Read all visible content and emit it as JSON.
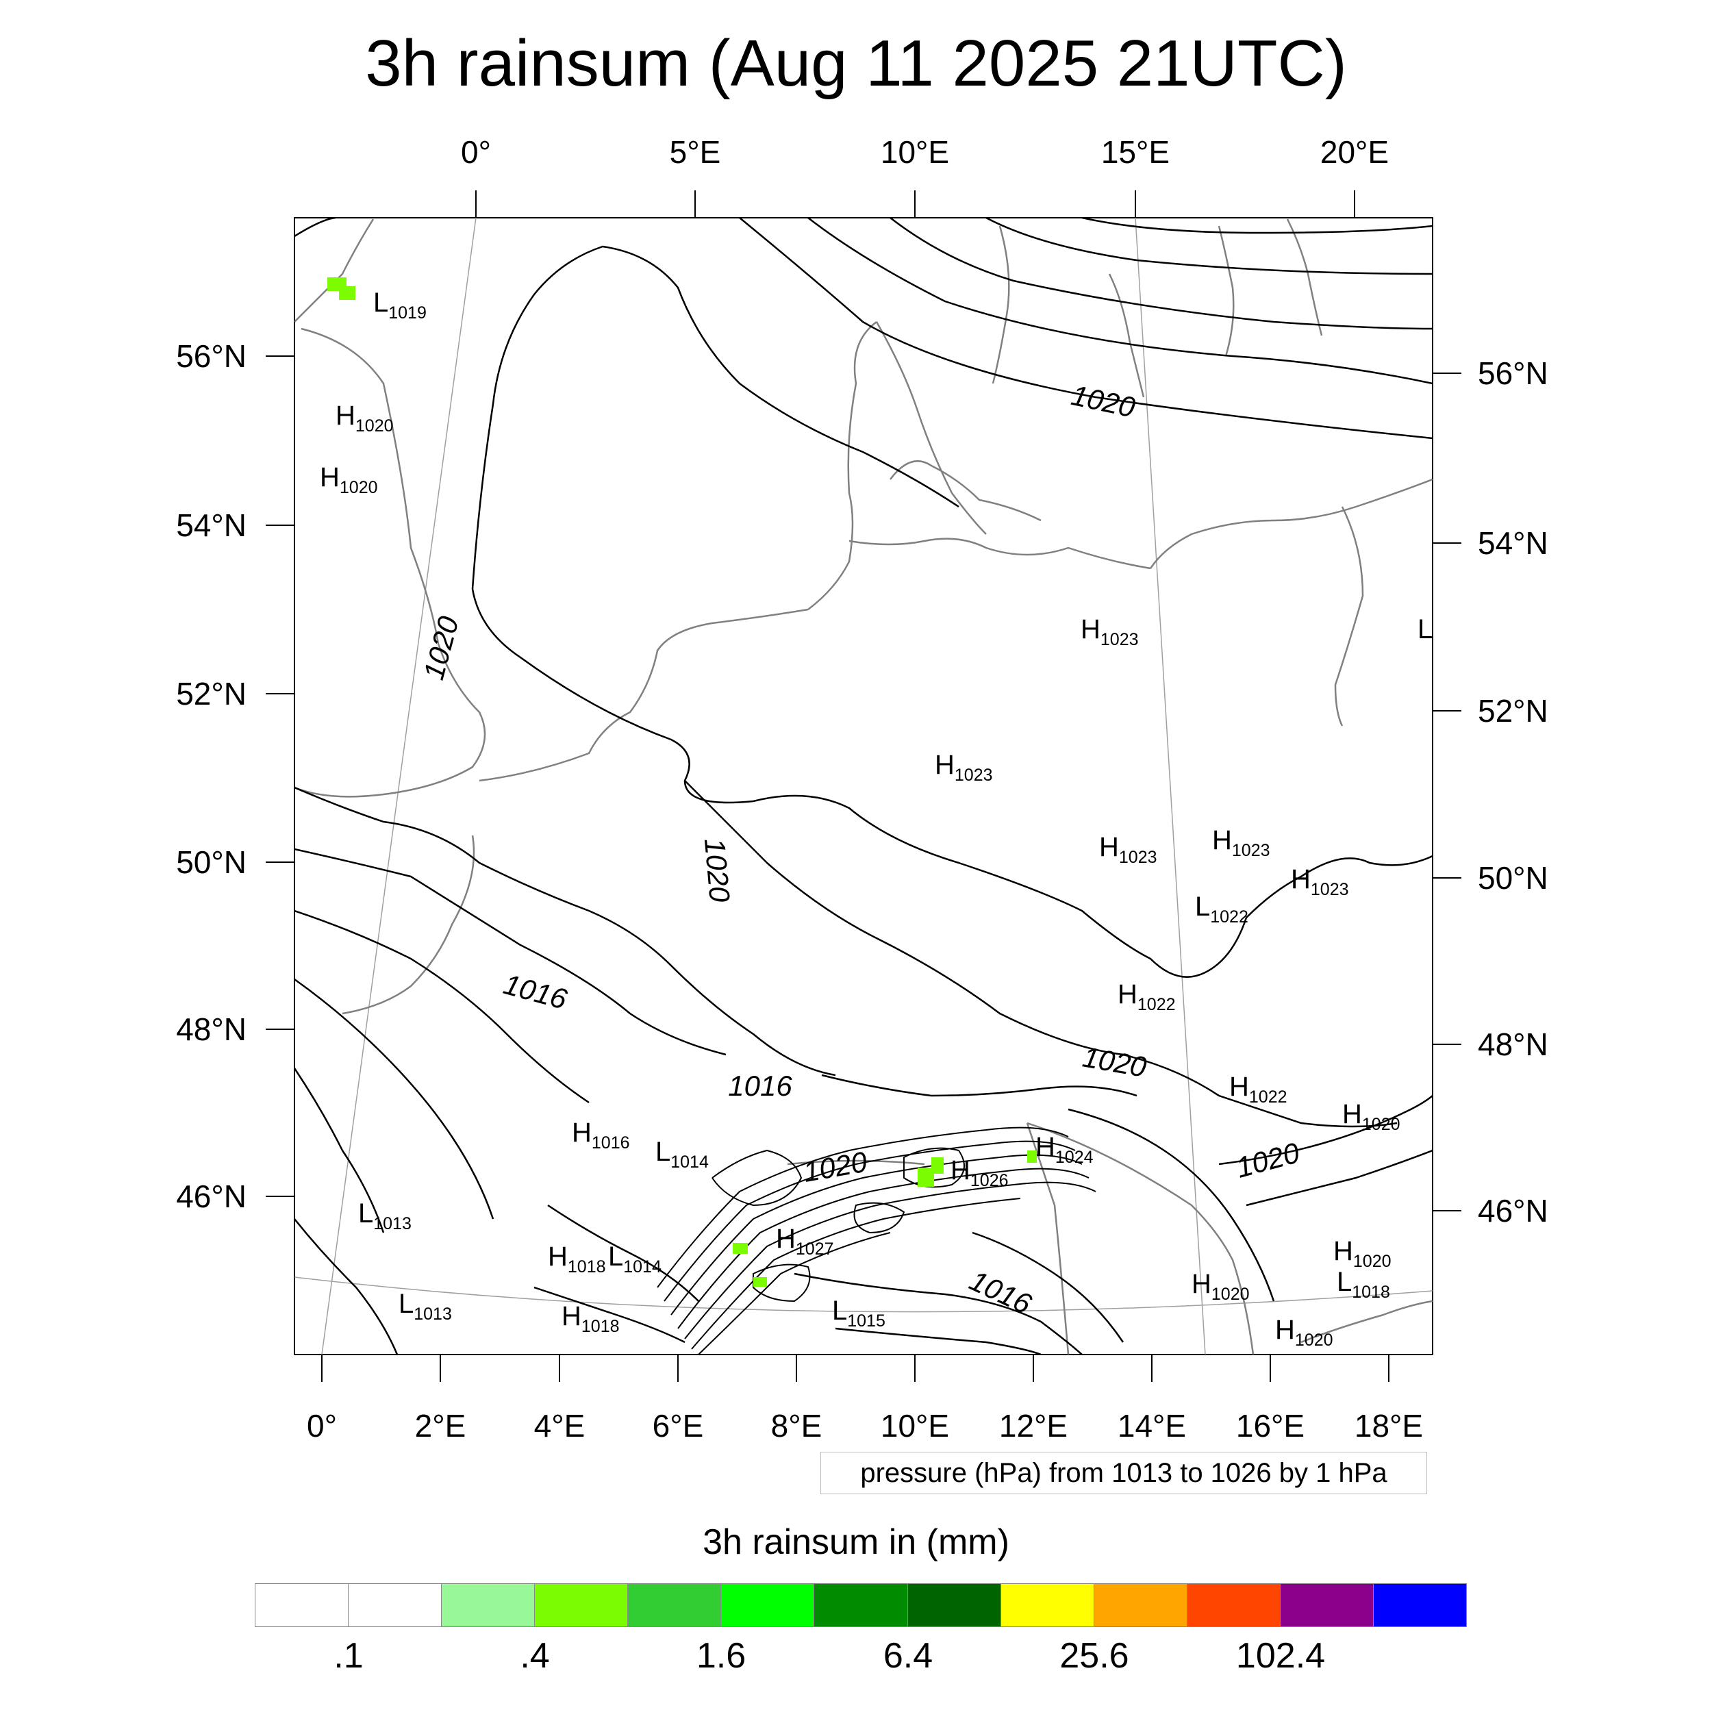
{
  "title": "3h rainsum (Aug 11 2025 21UTC)",
  "map": {
    "top_lon_labels": [
      "0°",
      "5°E",
      "10°E",
      "15°E",
      "20°E"
    ],
    "bottom_lon_labels": [
      "0°",
      "2°E",
      "4°E",
      "6°E",
      "8°E",
      "10°E",
      "12°E",
      "14°E",
      "16°E",
      "18°E"
    ],
    "left_lat_labels": [
      "56°N",
      "54°N",
      "52°N",
      "50°N",
      "48°N",
      "46°N"
    ],
    "right_lat_labels": [
      "56°N",
      "54°N",
      "52°N",
      "50°N",
      "48°N",
      "46°N"
    ],
    "pressure_centers": [
      {
        "t": "L",
        "v": "1019"
      },
      {
        "t": "H",
        "v": "1020"
      },
      {
        "t": "H",
        "v": "1020"
      },
      {
        "t": "H",
        "v": "1023"
      },
      {
        "t": "L",
        "v": ""
      },
      {
        "t": "H",
        "v": "1023"
      },
      {
        "t": "H",
        "v": "1023"
      },
      {
        "t": "H",
        "v": "1023"
      },
      {
        "t": "H",
        "v": "1023"
      },
      {
        "t": "L",
        "v": "1022"
      },
      {
        "t": "H",
        "v": "1022"
      },
      {
        "t": "H",
        "v": "1022"
      },
      {
        "t": "H",
        "v": "1020"
      },
      {
        "t": "H",
        "v": "1016"
      },
      {
        "t": "L",
        "v": "1014"
      },
      {
        "t": "H",
        "v": "1026"
      },
      {
        "t": "H",
        "v": "1024"
      },
      {
        "t": "L",
        "v": "1013"
      },
      {
        "t": "H",
        "v": "1018"
      },
      {
        "t": "L",
        "v": "1014"
      },
      {
        "t": "H",
        "v": "1027"
      },
      {
        "t": "L",
        "v": "1013"
      },
      {
        "t": "H",
        "v": "1018"
      },
      {
        "t": "L",
        "v": "1015"
      },
      {
        "t": "H",
        "v": "1020"
      },
      {
        "t": "L",
        "v": "1018"
      },
      {
        "t": "H",
        "v": "1020"
      },
      {
        "t": "H",
        "v": "1020"
      }
    ],
    "contour_labels": [
      "1020",
      "1020",
      "1020",
      "1016",
      "1016",
      "1020",
      "1020",
      "1020",
      "1016"
    ],
    "colors": {
      "contour": "#000000",
      "coast": "#808080",
      "grid": "#a0a0a0",
      "rain": "#7cfc00"
    }
  },
  "pressure_note": "pressure (hPa) from 1013 to 1026 by 1 hPa",
  "legend": {
    "title": "3h rainsum in (mm)",
    "colors": [
      "#ffffff",
      "#ffffff",
      "#98f898",
      "#7cfc00",
      "#32cd32",
      "#00ff00",
      "#008b00",
      "#006400",
      "#ffff00",
      "#ffa500",
      "#ff4500",
      "#8b008b",
      "#0000ff"
    ],
    "labels": [
      ".1",
      ".4",
      "1.6",
      "6.4",
      "25.6",
      "102.4"
    ]
  }
}
